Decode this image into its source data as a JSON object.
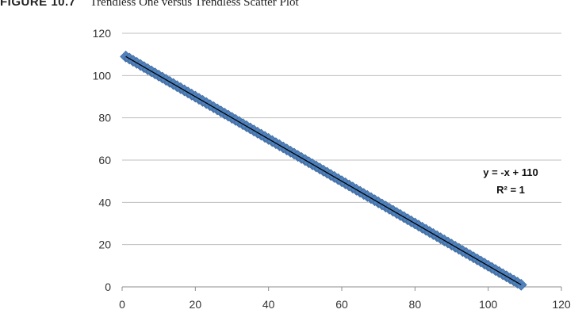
{
  "caption": {
    "figure_label": "FIGURE 10.7",
    "text": "Trendless One versus Trendless Scatter Plot"
  },
  "chart_data": {
    "type": "scatter",
    "title": "",
    "xlabel": "",
    "ylabel": "",
    "xlim": [
      0,
      120
    ],
    "ylim": [
      0,
      120
    ],
    "x_ticks": [
      0,
      20,
      40,
      60,
      80,
      100,
      120
    ],
    "y_ticks": [
      0,
      20,
      40,
      60,
      80,
      100,
      120
    ],
    "grid": "horizontal",
    "legend": "none",
    "series": [
      {
        "marker": "diamond",
        "color": "#4f81bd",
        "x_start": 1,
        "x_end": 109,
        "x_step": 1,
        "rule": "y = 110 - x"
      }
    ],
    "trendline": {
      "color": "#000000",
      "slope": -1,
      "intercept": 110,
      "equation": "y = -x + 110",
      "r_squared": "R² = 1"
    }
  }
}
